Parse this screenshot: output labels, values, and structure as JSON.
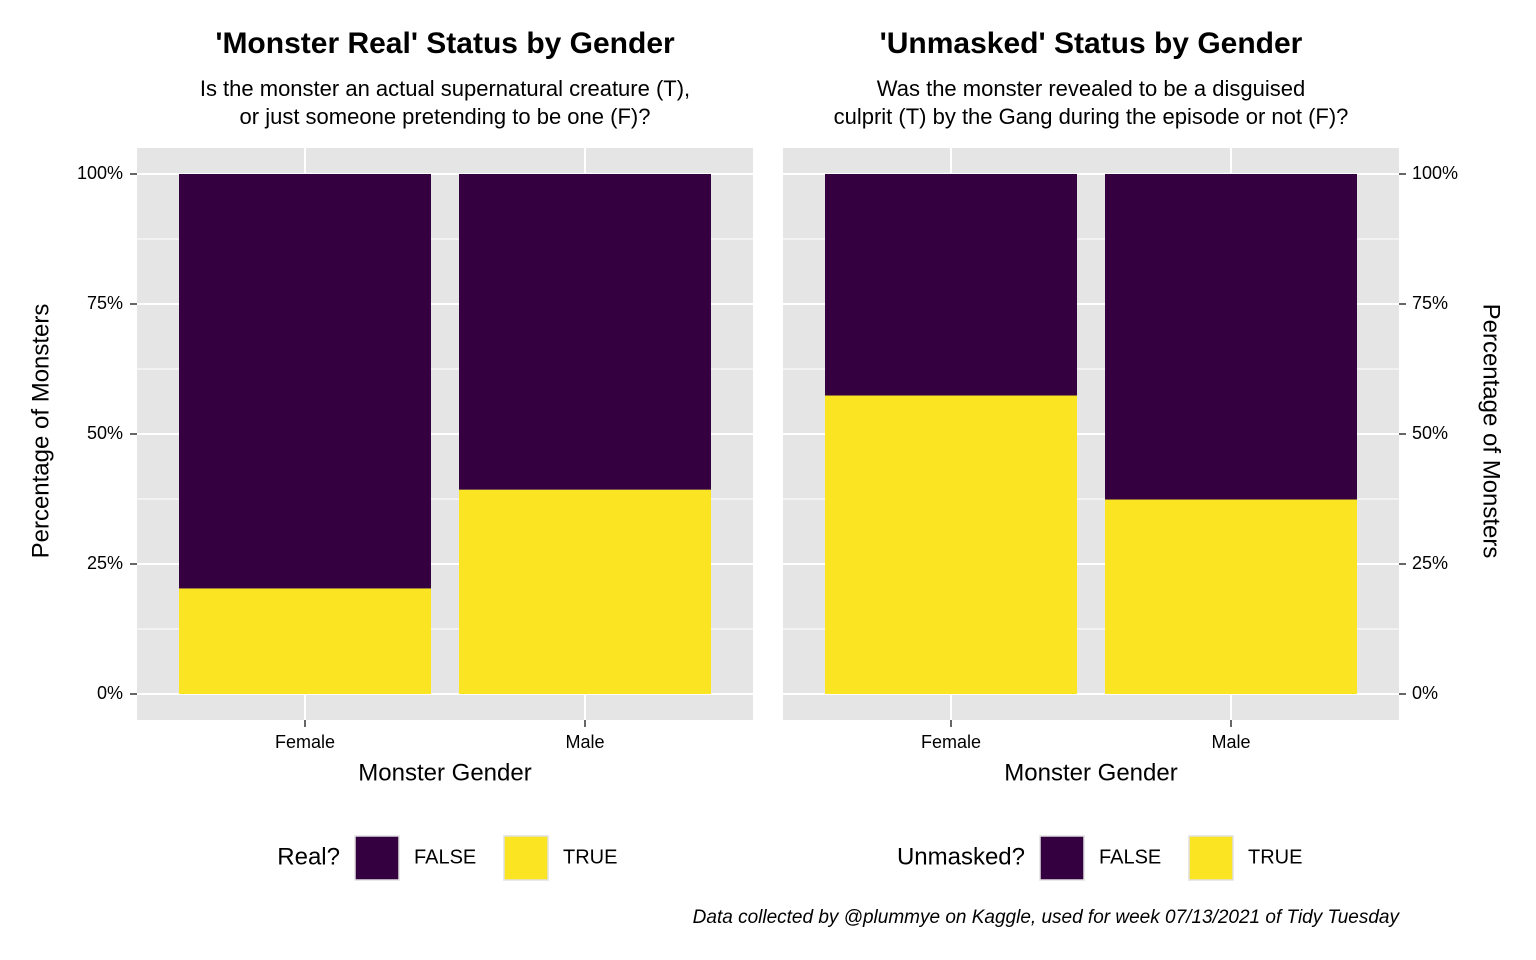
{
  "chart_data": [
    {
      "type": "stacked_bar",
      "title": "'Monster Real' Status by Gender",
      "subtitle": [
        "Is the monster an actual supernatural creature (T),",
        "or just someone pretending to be one (F)?"
      ],
      "x_label": "Monster Gender",
      "y_label": "Percentage of Monsters",
      "y_axis_side": "left",
      "categories": [
        "Female",
        "Male"
      ],
      "series": [
        {
          "name": "FALSE",
          "color": "#35003f",
          "values": [
            79.7,
            60.7
          ]
        },
        {
          "name": "TRUE",
          "color": "#fbe422",
          "values": [
            20.3,
            39.3
          ]
        }
      ],
      "legend_title": "Real?",
      "legend_position": "bottom",
      "ylim": [
        -5,
        105
      ],
      "yticks": [
        {
          "value": 0,
          "label": "0%"
        },
        {
          "value": 25,
          "label": "25%"
        },
        {
          "value": 50,
          "label": "50%"
        },
        {
          "value": 75,
          "label": "75%"
        },
        {
          "value": 100,
          "label": "100%"
        }
      ],
      "minor_yticks": [
        12.5,
        37.5,
        62.5,
        87.5
      ],
      "grid": true
    },
    {
      "type": "stacked_bar",
      "title": "'Unmasked' Status by Gender",
      "subtitle": [
        "Was the monster revealed to be a disguised",
        "culprit (T) by the Gang during the episode or not (F)?"
      ],
      "x_label": "Monster Gender",
      "y_label": "Percentage of Monsters",
      "y_axis_side": "right",
      "categories": [
        "Female",
        "Male"
      ],
      "series": [
        {
          "name": "FALSE",
          "color": "#35003f",
          "values": [
            42.6,
            62.6
          ]
        },
        {
          "name": "TRUE",
          "color": "#fbe422",
          "values": [
            57.4,
            37.4
          ]
        }
      ],
      "legend_title": "Unmasked?",
      "legend_position": "bottom",
      "ylim": [
        -5,
        105
      ],
      "yticks": [
        {
          "value": 0,
          "label": "0%"
        },
        {
          "value": 25,
          "label": "25%"
        },
        {
          "value": 50,
          "label": "50%"
        },
        {
          "value": 75,
          "label": "75%"
        },
        {
          "value": 100,
          "label": "100%"
        }
      ],
      "minor_yticks": [
        12.5,
        37.5,
        62.5,
        87.5
      ],
      "grid": true
    }
  ],
  "caption": "Data collected by @plummye on Kaggle, used for week 07/13/2021 of Tidy Tuesday"
}
